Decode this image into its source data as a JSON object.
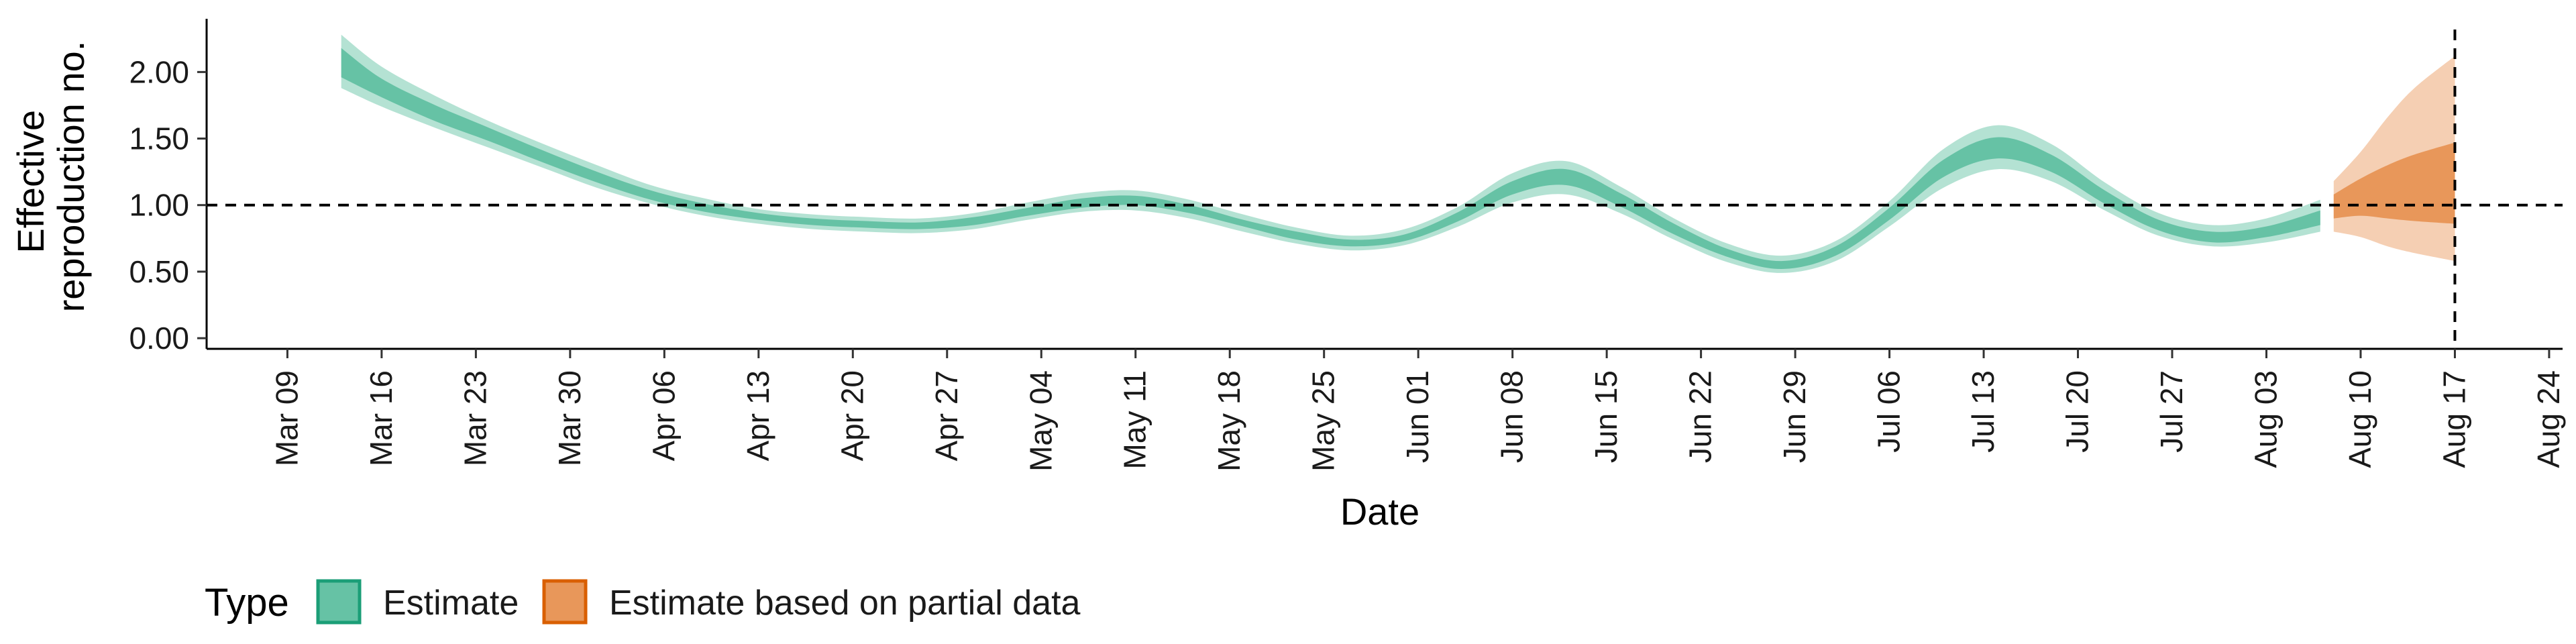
{
  "chart_data": {
    "type": "area",
    "xlabel": "Date",
    "ylabel_lines": [
      "Effective",
      "reproduction no."
    ],
    "ylim": [
      -0.08,
      2.4
    ],
    "y_ticks": [
      0.0,
      0.5,
      1.0,
      1.5,
      2.0
    ],
    "y_tick_labels": [
      "0.00",
      "0.50",
      "1.00",
      "1.50",
      "2.00"
    ],
    "xlim": [
      "2020-03-03",
      "2020-08-25"
    ],
    "x_ticks": [
      {
        "date": "2020-03-09",
        "label": "Mar 09"
      },
      {
        "date": "2020-03-16",
        "label": "Mar 16"
      },
      {
        "date": "2020-03-23",
        "label": "Mar 23"
      },
      {
        "date": "2020-03-30",
        "label": "Mar 30"
      },
      {
        "date": "2020-04-06",
        "label": "Apr 06"
      },
      {
        "date": "2020-04-13",
        "label": "Apr 13"
      },
      {
        "date": "2020-04-20",
        "label": "Apr 20"
      },
      {
        "date": "2020-04-27",
        "label": "Apr 27"
      },
      {
        "date": "2020-05-04",
        "label": "May 04"
      },
      {
        "date": "2020-05-11",
        "label": "May 11"
      },
      {
        "date": "2020-05-18",
        "label": "May 18"
      },
      {
        "date": "2020-05-25",
        "label": "May 25"
      },
      {
        "date": "2020-06-01",
        "label": "Jun 01"
      },
      {
        "date": "2020-06-08",
        "label": "Jun 08"
      },
      {
        "date": "2020-06-15",
        "label": "Jun 15"
      },
      {
        "date": "2020-06-22",
        "label": "Jun 22"
      },
      {
        "date": "2020-06-29",
        "label": "Jun 29"
      },
      {
        "date": "2020-07-06",
        "label": "Jul 06"
      },
      {
        "date": "2020-07-13",
        "label": "Jul 13"
      },
      {
        "date": "2020-07-20",
        "label": "Jul 20"
      },
      {
        "date": "2020-07-27",
        "label": "Jul 27"
      },
      {
        "date": "2020-08-03",
        "label": "Aug 03"
      },
      {
        "date": "2020-08-10",
        "label": "Aug 10"
      },
      {
        "date": "2020-08-17",
        "label": "Aug 17"
      },
      {
        "date": "2020-08-24",
        "label": "Aug 24"
      }
    ],
    "reference_hline": 1.0,
    "reference_vline": "2020-08-17",
    "grid": false,
    "legend": {
      "position": "bottom",
      "title": "Type",
      "entries": [
        {
          "label": "Estimate",
          "fill": "#66c2a5",
          "border": "#1b9e77"
        },
        {
          "label": "Estimate based on partial data",
          "fill": "#e8975a",
          "border": "#d95f02"
        }
      ]
    },
    "series": [
      {
        "name": "Estimate",
        "color_inner": "#66c2a5",
        "color_outer": "#b4e2d3",
        "points": [
          {
            "x": "2020-03-13",
            "lo90": 1.88,
            "lo50": 1.96,
            "hi50": 2.18,
            "hi90": 2.28
          },
          {
            "x": "2020-03-16",
            "lo90": 1.74,
            "lo50": 1.81,
            "hi50": 1.95,
            "hi90": 2.04
          },
          {
            "x": "2020-03-20",
            "lo90": 1.58,
            "lo50": 1.63,
            "hi50": 1.75,
            "hi90": 1.82
          },
          {
            "x": "2020-03-24",
            "lo90": 1.43,
            "lo50": 1.48,
            "hi50": 1.58,
            "hi90": 1.63
          },
          {
            "x": "2020-03-28",
            "lo90": 1.28,
            "lo50": 1.32,
            "hi50": 1.41,
            "hi90": 1.46
          },
          {
            "x": "2020-04-01",
            "lo90": 1.13,
            "lo50": 1.17,
            "hi50": 1.25,
            "hi90": 1.3
          },
          {
            "x": "2020-04-05",
            "lo90": 1.01,
            "lo50": 1.04,
            "hi50": 1.11,
            "hi90": 1.15
          },
          {
            "x": "2020-04-09",
            "lo90": 0.92,
            "lo50": 0.95,
            "hi50": 1.01,
            "hi90": 1.05
          },
          {
            "x": "2020-04-13",
            "lo90": 0.86,
            "lo50": 0.89,
            "hi50": 0.94,
            "hi90": 0.97
          },
          {
            "x": "2020-04-17",
            "lo90": 0.82,
            "lo50": 0.85,
            "hi50": 0.9,
            "hi90": 0.93
          },
          {
            "x": "2020-04-21",
            "lo90": 0.8,
            "lo50": 0.83,
            "hi50": 0.88,
            "hi90": 0.91
          },
          {
            "x": "2020-04-25",
            "lo90": 0.79,
            "lo50": 0.82,
            "hi50": 0.87,
            "hi90": 0.9
          },
          {
            "x": "2020-04-29",
            "lo90": 0.82,
            "lo50": 0.85,
            "hi50": 0.91,
            "hi90": 0.94
          },
          {
            "x": "2020-05-03",
            "lo90": 0.89,
            "lo50": 0.92,
            "hi50": 0.98,
            "hi90": 1.02
          },
          {
            "x": "2020-05-07",
            "lo90": 0.95,
            "lo50": 0.98,
            "hi50": 1.05,
            "hi90": 1.09
          },
          {
            "x": "2020-05-11",
            "lo90": 0.96,
            "lo50": 1.0,
            "hi50": 1.07,
            "hi90": 1.11
          },
          {
            "x": "2020-05-15",
            "lo90": 0.9,
            "lo50": 0.94,
            "hi50": 1.0,
            "hi90": 1.04
          },
          {
            "x": "2020-05-19",
            "lo90": 0.8,
            "lo50": 0.84,
            "hi50": 0.89,
            "hi90": 0.93
          },
          {
            "x": "2020-05-23",
            "lo90": 0.71,
            "lo50": 0.74,
            "hi50": 0.8,
            "hi90": 0.83
          },
          {
            "x": "2020-05-27",
            "lo90": 0.66,
            "lo50": 0.69,
            "hi50": 0.74,
            "hi90": 0.77
          },
          {
            "x": "2020-05-31",
            "lo90": 0.7,
            "lo50": 0.73,
            "hi50": 0.78,
            "hi90": 0.82
          },
          {
            "x": "2020-06-04",
            "lo90": 0.84,
            "lo50": 0.88,
            "hi50": 0.95,
            "hi90": 0.99
          },
          {
            "x": "2020-06-08",
            "lo90": 1.02,
            "lo50": 1.08,
            "hi50": 1.18,
            "hi90": 1.24
          },
          {
            "x": "2020-06-12",
            "lo90": 1.08,
            "lo50": 1.15,
            "hi50": 1.27,
            "hi90": 1.33
          },
          {
            "x": "2020-06-16",
            "lo90": 0.94,
            "lo50": 0.99,
            "hi50": 1.09,
            "hi90": 1.14
          },
          {
            "x": "2020-06-20",
            "lo90": 0.74,
            "lo50": 0.78,
            "hi50": 0.86,
            "hi90": 0.9
          },
          {
            "x": "2020-06-24",
            "lo90": 0.57,
            "lo50": 0.61,
            "hi50": 0.67,
            "hi90": 0.71
          },
          {
            "x": "2020-06-28",
            "lo90": 0.49,
            "lo50": 0.52,
            "hi50": 0.58,
            "hi90": 0.62
          },
          {
            "x": "2020-07-02",
            "lo90": 0.58,
            "lo50": 0.62,
            "hi50": 0.69,
            "hi90": 0.73
          },
          {
            "x": "2020-07-06",
            "lo90": 0.84,
            "lo50": 0.89,
            "hi50": 0.98,
            "hi90": 1.03
          },
          {
            "x": "2020-07-10",
            "lo90": 1.13,
            "lo50": 1.21,
            "hi50": 1.34,
            "hi90": 1.42
          },
          {
            "x": "2020-07-14",
            "lo90": 1.27,
            "lo50": 1.35,
            "hi50": 1.51,
            "hi90": 1.6
          },
          {
            "x": "2020-07-18",
            "lo90": 1.18,
            "lo50": 1.25,
            "hi50": 1.38,
            "hi90": 1.46
          },
          {
            "x": "2020-07-22",
            "lo90": 0.96,
            "lo50": 1.01,
            "hi50": 1.11,
            "hi90": 1.17
          },
          {
            "x": "2020-07-26",
            "lo90": 0.77,
            "lo50": 0.81,
            "hi50": 0.89,
            "hi90": 0.94
          },
          {
            "x": "2020-07-30",
            "lo90": 0.69,
            "lo50": 0.72,
            "hi50": 0.8,
            "hi90": 0.85
          },
          {
            "x": "2020-08-03",
            "lo90": 0.72,
            "lo50": 0.76,
            "hi50": 0.84,
            "hi90": 0.9
          },
          {
            "x": "2020-08-07",
            "lo90": 0.8,
            "lo50": 0.85,
            "hi50": 0.96,
            "hi90": 1.04
          }
        ]
      },
      {
        "name": "Estimate based on partial data",
        "color_inner": "#e8975a",
        "color_outer": "#f5cfb3",
        "points": [
          {
            "x": "2020-08-08",
            "lo90": 0.8,
            "lo50": 0.9,
            "hi50": 1.08,
            "hi90": 1.18
          },
          {
            "x": "2020-08-10",
            "lo90": 0.76,
            "lo50": 0.92,
            "hi50": 1.2,
            "hi90": 1.4
          },
          {
            "x": "2020-08-12",
            "lo90": 0.69,
            "lo50": 0.9,
            "hi50": 1.3,
            "hi90": 1.66
          },
          {
            "x": "2020-08-14",
            "lo90": 0.64,
            "lo50": 0.88,
            "hi50": 1.38,
            "hi90": 1.88
          },
          {
            "x": "2020-08-17",
            "lo90": 0.58,
            "lo50": 0.86,
            "hi50": 1.47,
            "hi90": 2.12
          }
        ]
      }
    ]
  }
}
